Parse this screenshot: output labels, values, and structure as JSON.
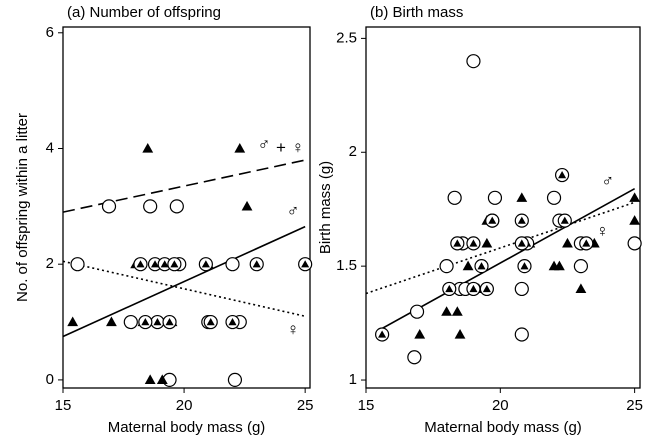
{
  "chart_data": [
    {
      "type": "scatter",
      "title": "(a) Number of offspring",
      "x_label": "Maternal body mass (g)",
      "y_label": "No. of offspring within a litter",
      "xlim": [
        15,
        25.2
      ],
      "ylim": [
        -0.14,
        6.1
      ],
      "xticks": [
        15,
        20,
        25
      ],
      "yticks": [
        0,
        2,
        4,
        6
      ],
      "series": [
        {
          "marker": "circle",
          "color": "#000000",
          "x": [
            15.6,
            16.9,
            18.6,
            19.7,
            17.8,
            22.1,
            19.4,
            22.0,
            22.3,
            19.8
          ],
          "values": [
            2,
            3,
            3,
            3,
            1,
            0,
            0,
            2,
            1,
            2
          ]
        },
        {
          "marker": "triangle",
          "color": "#000000",
          "x": [
            15.4,
            17.0,
            18.5,
            22.3,
            22.6,
            18.0,
            18.6,
            19.1,
            19.5,
            21.0,
            22.0,
            18.3
          ],
          "values": [
            1,
            1,
            4,
            4,
            3,
            2,
            0,
            0,
            1,
            2,
            1,
            1
          ]
        },
        {
          "marker": "circle-triangle",
          "color": "#000000",
          "x": [
            18.8,
            19.2,
            19.6,
            20.9,
            21.0,
            18.9,
            19.4,
            23.0,
            25.0,
            22.0,
            21.1,
            18.2,
            18.4
          ],
          "values": [
            2,
            2,
            2,
            2,
            1,
            1,
            1,
            2,
            2,
            1,
            1,
            2,
            1
          ]
        }
      ],
      "lines": [
        {
          "style": "dashed",
          "x": [
            15,
            25
          ],
          "values": [
            2.9,
            3.8
          ]
        },
        {
          "style": "solid",
          "x": [
            15,
            25
          ],
          "values": [
            0.75,
            2.65
          ]
        },
        {
          "style": "dotted",
          "x": [
            15,
            25
          ],
          "values": [
            2.05,
            1.1
          ]
        }
      ],
      "annotations": [
        {
          "text": "♂",
          "x": 23.3,
          "y": 4.05
        },
        {
          "text": "+",
          "x": 24.0,
          "y": 4.0
        },
        {
          "text": "♀",
          "x": 24.7,
          "y": 4.0
        },
        {
          "text": "♂",
          "x": 24.5,
          "y": 2.9
        },
        {
          "text": "♀",
          "x": 24.5,
          "y": 0.85
        }
      ]
    },
    {
      "type": "scatter",
      "title": "(b) Birth mass",
      "x_label": "Maternal body mass (g)",
      "y_label": "Birth mass (g)",
      "xlim": [
        15,
        25.2
      ],
      "ylim": [
        0.965,
        2.55
      ],
      "xticks": [
        15,
        20,
        25
      ],
      "yticks": [
        1,
        1.5,
        2,
        2.5
      ],
      "series": [
        {
          "marker": "circle",
          "color": "#000000",
          "x": [
            16.8,
            16.9,
            18.0,
            18.3,
            18.6,
            19.0,
            19.8,
            19.7,
            18.5,
            20.8,
            20.8,
            22.0,
            22.2,
            23.0,
            23.0,
            25.0,
            18.7
          ],
          "values": [
            1.1,
            1.3,
            1.5,
            1.8,
            1.6,
            2.4,
            1.8,
            1.7,
            1.4,
            1.4,
            1.2,
            1.8,
            1.7,
            1.5,
            1.6,
            1.6,
            1.4
          ]
        },
        {
          "marker": "triangle",
          "color": "#000000",
          "x": [
            17.0,
            18.0,
            18.4,
            18.5,
            18.8,
            19.2,
            19.5,
            20.8,
            21.1,
            22.0,
            22.2,
            22.5,
            23.0,
            23.5,
            25.0,
            25.0,
            19.5
          ],
          "values": [
            1.2,
            1.3,
            1.3,
            1.2,
            1.5,
            1.4,
            1.7,
            1.8,
            1.6,
            1.5,
            1.5,
            1.6,
            1.4,
            1.6,
            1.7,
            1.8,
            1.6
          ]
        },
        {
          "marker": "circle-triangle",
          "color": "#000000",
          "x": [
            15.6,
            18.1,
            18.4,
            19.0,
            19.3,
            19.5,
            19.7,
            20.8,
            20.9,
            21.0,
            22.3,
            22.4,
            23.2,
            19.0,
            20.8
          ],
          "values": [
            1.2,
            1.4,
            1.6,
            1.6,
            1.5,
            1.4,
            1.7,
            1.7,
            1.5,
            1.6,
            1.9,
            1.7,
            1.6,
            1.4,
            1.6
          ]
        }
      ],
      "lines": [
        {
          "style": "solid",
          "x": [
            15.5,
            25
          ],
          "values": [
            1.22,
            1.84
          ]
        },
        {
          "style": "dotted",
          "x": [
            15,
            25
          ],
          "values": [
            1.38,
            1.78
          ]
        }
      ],
      "annotations": [
        {
          "text": "♂",
          "x": 24.0,
          "y": 1.87
        },
        {
          "text": "♀",
          "x": 23.8,
          "y": 1.65
        }
      ]
    }
  ]
}
